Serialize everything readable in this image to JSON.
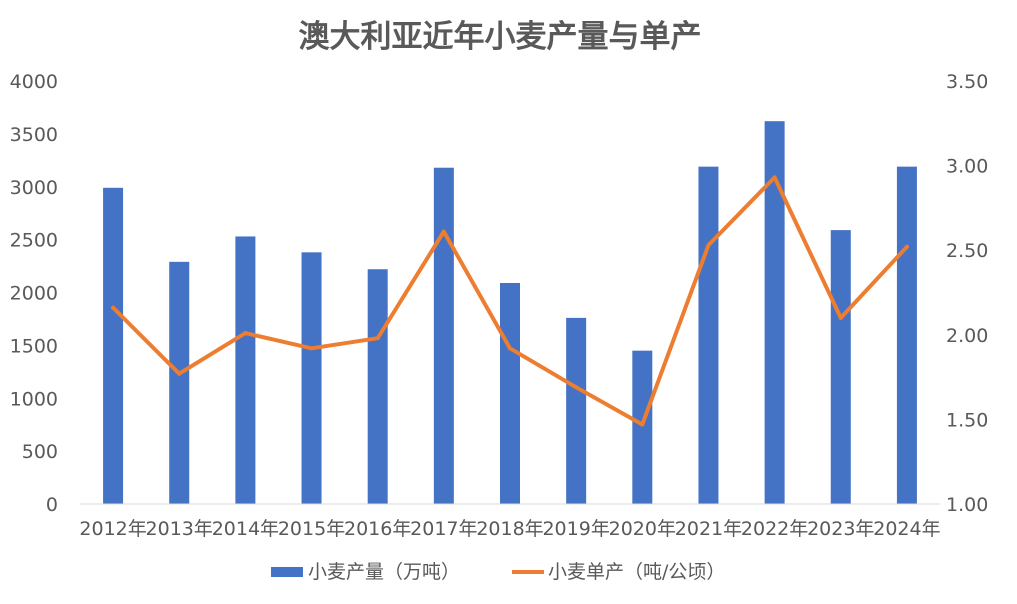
{
  "chart_data": {
    "type": "bar",
    "title": "澳大利亚近年小麦产量与单产",
    "categories": [
      "2012年",
      "2013年",
      "2014年",
      "2015年",
      "2016年",
      "2017年",
      "2018年",
      "2019年",
      "2020年",
      "2021年",
      "2022年",
      "2023年",
      "2024年"
    ],
    "series": [
      {
        "name": "小麦产量（万吨）",
        "type": "bar",
        "axis": "left",
        "color": "#4472C4",
        "values": [
          2990,
          2290,
          2530,
          2380,
          2220,
          3180,
          2090,
          1760,
          1450,
          3190,
          3620,
          2590,
          3190
        ]
      },
      {
        "name": "小麦单产（吨/公顷）",
        "type": "line",
        "axis": "right",
        "color": "#ED7D31",
        "values": [
          2.16,
          1.77,
          2.01,
          1.92,
          1.98,
          2.61,
          1.92,
          1.69,
          1.47,
          2.53,
          2.93,
          2.1,
          2.52
        ]
      }
    ],
    "y_left": {
      "min": 0,
      "max": 4000,
      "ticks": [
        "0",
        "500",
        "1000",
        "1500",
        "2000",
        "2500",
        "3000",
        "3500",
        "4000"
      ]
    },
    "y_right": {
      "min": 1.0,
      "max": 3.5,
      "ticks": [
        "1.00",
        "1.50",
        "2.00",
        "2.50",
        "3.00",
        "3.50"
      ]
    },
    "grid": false,
    "legend_position": "bottom"
  }
}
